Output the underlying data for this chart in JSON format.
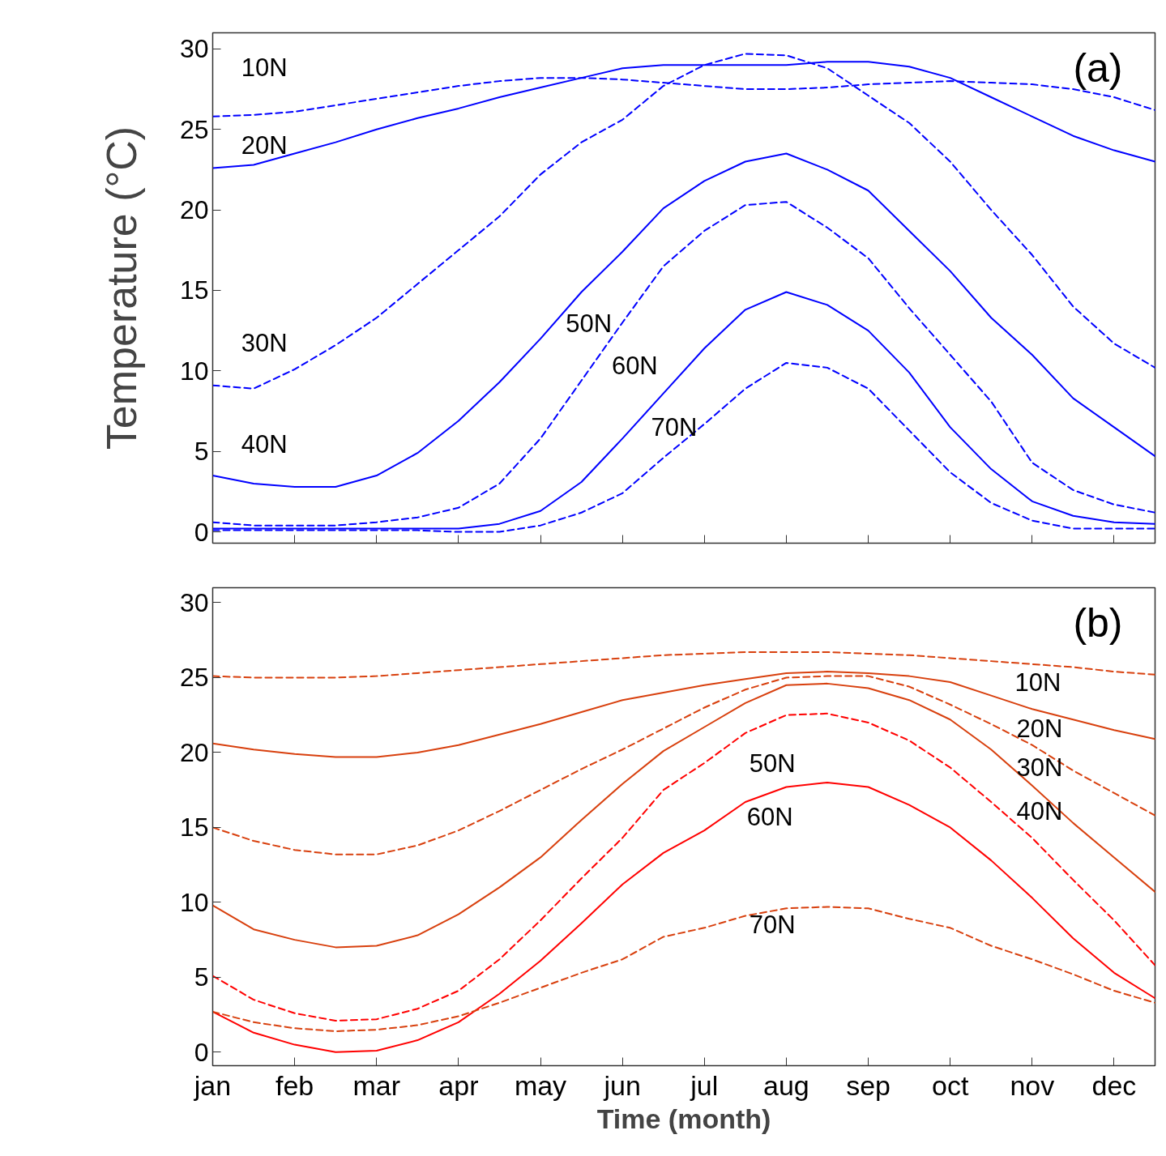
{
  "chart_data": [
    {
      "type": "line",
      "ylabel": "Temperature (°C)",
      "categories": [
        null,
        null,
        null,
        null,
        null,
        null,
        null,
        null,
        null,
        null,
        null,
        null,
        null,
        null,
        null,
        null,
        null,
        null,
        null,
        null,
        null,
        null,
        null,
        null
      ],
      "ylim": [
        -0.7,
        31
      ],
      "yticks": [
        0,
        5,
        10,
        15,
        20,
        25,
        30
      ],
      "grid": false,
      "series": [
        {
          "name": "10N",
          "color": "#0000ff",
          "line_style": "dashed",
          "values": [
            25.8,
            25.9,
            26.1,
            26.5,
            26.9,
            27.3,
            27.7,
            28.0,
            28.2,
            28.2,
            28.1,
            27.9,
            27.7,
            27.5,
            27.5,
            27.6,
            27.8,
            27.9,
            28.0,
            27.9,
            27.8,
            27.5,
            27.0,
            26.2
          ]
        },
        {
          "name": "20N",
          "color": "#0000ff",
          "line_style": "solid",
          "values": [
            22.6,
            22.8,
            23.5,
            24.2,
            25.0,
            25.7,
            26.3,
            27.0,
            27.6,
            28.2,
            28.8,
            29.0,
            29.0,
            29.0,
            29.0,
            29.2,
            29.2,
            28.9,
            28.2,
            27.0,
            25.8,
            24.6,
            23.7,
            23.0
          ]
        },
        {
          "name": "30N",
          "color": "#0000ff",
          "line_style": "dashed",
          "values": [
            9.1,
            8.9,
            10.1,
            11.6,
            13.3,
            15.4,
            17.5,
            19.6,
            22.2,
            24.2,
            25.6,
            27.7,
            29.0,
            29.7,
            29.6,
            28.8,
            27.1,
            25.4,
            23.0,
            20.0,
            17.2,
            14.0,
            11.7,
            10.2
          ]
        },
        {
          "name": "40N",
          "color": "#0000ff",
          "line_style": "solid",
          "values": [
            3.5,
            3.0,
            2.8,
            2.8,
            3.5,
            4.9,
            6.9,
            9.3,
            12.0,
            14.9,
            17.4,
            20.1,
            21.8,
            23.0,
            23.5,
            22.5,
            21.2,
            18.7,
            16.2,
            13.3,
            11.0,
            8.3,
            6.5,
            4.7
          ]
        },
        {
          "name": "50N",
          "color": "#0000ff",
          "line_style": "dashed",
          "values": [
            0.6,
            0.4,
            0.4,
            0.4,
            0.6,
            0.9,
            1.5,
            3.0,
            5.8,
            9.4,
            13.0,
            16.5,
            18.7,
            20.3,
            20.5,
            18.9,
            17.0,
            13.9,
            11.0,
            8.1,
            4.3,
            2.6,
            1.7,
            1.2
          ]
        },
        {
          "name": "60N",
          "color": "#0000ff",
          "line_style": "solid",
          "values": [
            0.2,
            0.2,
            0.2,
            0.2,
            0.2,
            0.2,
            0.2,
            0.5,
            1.3,
            3.1,
            5.8,
            8.6,
            11.4,
            13.8,
            14.9,
            14.1,
            12.5,
            9.9,
            6.5,
            3.9,
            1.9,
            1.0,
            0.6,
            0.5
          ]
        },
        {
          "name": "70N",
          "color": "#0000ff",
          "line_style": "dashed",
          "values": [
            0.1,
            0.1,
            0.1,
            0.1,
            0.1,
            0.1,
            0.0,
            0.0,
            0.4,
            1.2,
            2.4,
            4.6,
            6.7,
            8.9,
            10.5,
            10.2,
            8.9,
            6.3,
            3.7,
            1.8,
            0.7,
            0.2,
            0.2,
            0.2
          ]
        }
      ],
      "annotations": [
        "(a)"
      ]
    },
    {
      "type": "line",
      "xlabel": "Time (month)",
      "categories": [
        "jan",
        null,
        "feb",
        null,
        "mar",
        null,
        "apr",
        null,
        "may",
        null,
        "jun",
        null,
        "jul",
        null,
        "aug",
        null,
        "sep",
        null,
        "oct",
        null,
        "nov",
        null,
        "dec",
        null
      ],
      "ylim": [
        -0.9,
        31
      ],
      "yticks": [
        0,
        5,
        10,
        15,
        20,
        25,
        30
      ],
      "grid": false,
      "series": [
        {
          "name": "10N",
          "color": "#d8400e",
          "line_style": "dashed",
          "values": [
            25.1,
            25.0,
            25.0,
            25.0,
            25.1,
            25.3,
            25.5,
            25.7,
            25.9,
            26.1,
            26.3,
            26.5,
            26.6,
            26.7,
            26.7,
            26.7,
            26.6,
            26.5,
            26.3,
            26.1,
            25.9,
            25.7,
            25.4,
            25.2
          ]
        },
        {
          "name": "20N",
          "color": "#d8400e",
          "line_style": "solid",
          "values": [
            20.6,
            20.2,
            19.9,
            19.7,
            19.7,
            20.0,
            20.5,
            21.2,
            21.9,
            22.7,
            23.5,
            24.0,
            24.5,
            24.9,
            25.3,
            25.4,
            25.3,
            25.1,
            24.7,
            23.8,
            22.9,
            22.2,
            21.5,
            20.9
          ]
        },
        {
          "name": "30N",
          "color": "#d8400e",
          "line_style": "dashed",
          "values": [
            15.0,
            14.1,
            13.5,
            13.2,
            13.2,
            13.8,
            14.8,
            16.1,
            17.5,
            18.9,
            20.2,
            21.6,
            23.0,
            24.2,
            25.0,
            25.1,
            25.1,
            24.4,
            23.2,
            21.9,
            20.5,
            18.8,
            17.3,
            15.8
          ]
        },
        {
          "name": "40N",
          "color": "#d8400e",
          "line_style": "solid",
          "values": [
            9.8,
            8.2,
            7.5,
            7.0,
            7.1,
            7.8,
            9.2,
            11.0,
            13.0,
            15.5,
            17.9,
            20.1,
            21.7,
            23.3,
            24.5,
            24.6,
            24.3,
            23.5,
            22.2,
            20.2,
            17.8,
            15.3,
            13.0,
            10.7
          ]
        },
        {
          "name": "50N",
          "color": "#ff0000",
          "line_style": "dashed",
          "values": [
            5.1,
            3.5,
            2.6,
            2.1,
            2.2,
            2.9,
            4.1,
            6.2,
            8.8,
            11.6,
            14.3,
            17.5,
            19.3,
            21.3,
            22.5,
            22.6,
            22.0,
            20.8,
            19.0,
            16.7,
            14.3,
            11.5,
            8.8,
            5.8
          ]
        },
        {
          "name": "60N",
          "color": "#ff0000",
          "line_style": "solid",
          "values": [
            2.7,
            1.3,
            0.5,
            0.0,
            0.1,
            0.8,
            2.0,
            3.9,
            6.1,
            8.6,
            11.2,
            13.3,
            14.8,
            16.7,
            17.7,
            18.0,
            17.7,
            16.5,
            15.0,
            12.8,
            10.3,
            7.6,
            5.3,
            3.6
          ]
        },
        {
          "name": "70N",
          "color": "#d8400e",
          "line_style": "dashed",
          "values": [
            2.7,
            2.0,
            1.6,
            1.4,
            1.5,
            1.8,
            2.4,
            3.3,
            4.3,
            5.3,
            6.2,
            7.7,
            8.3,
            9.1,
            9.6,
            9.7,
            9.6,
            8.9,
            8.3,
            7.1,
            6.2,
            5.2,
            4.1,
            3.3
          ]
        }
      ],
      "annotations": [
        "(b)"
      ]
    }
  ]
}
